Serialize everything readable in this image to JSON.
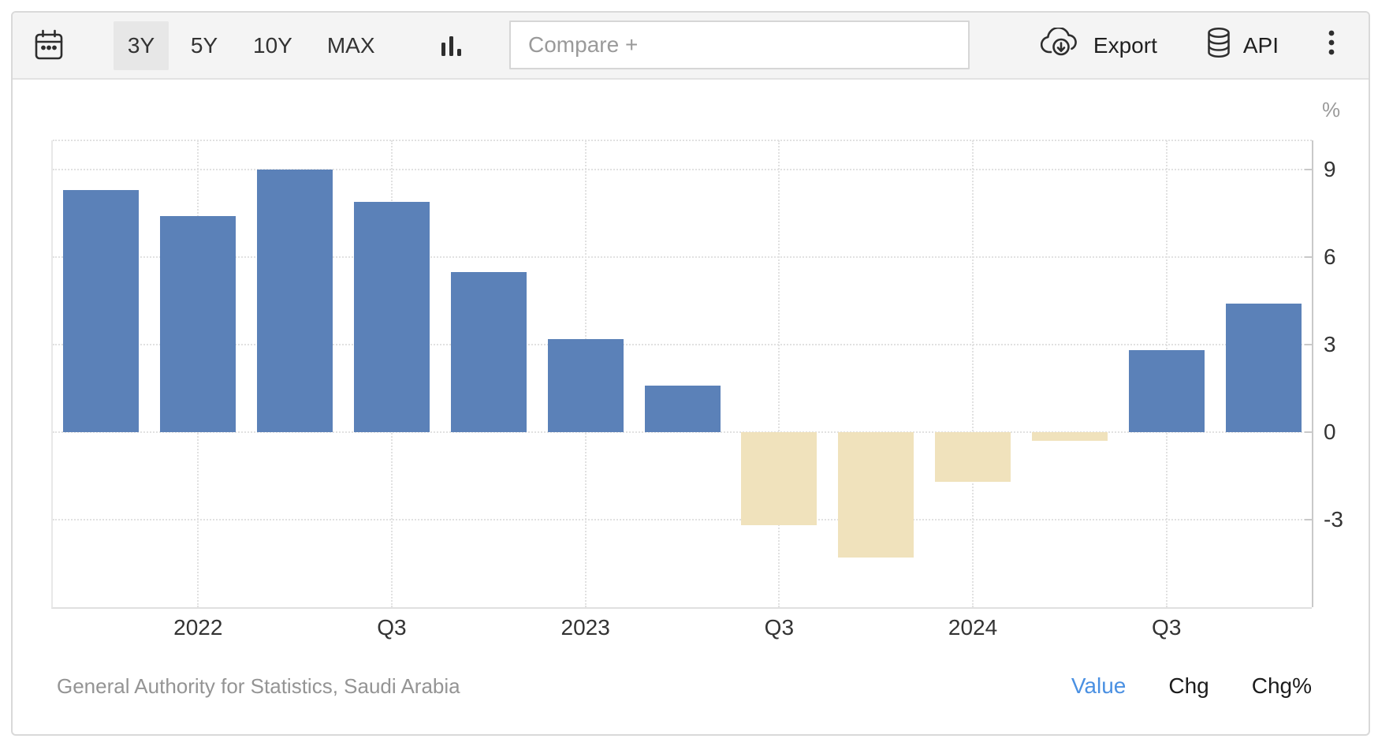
{
  "toolbar": {
    "calendar_icon": "calendar",
    "ranges": [
      {
        "label": "3Y",
        "selected": true
      },
      {
        "label": "5Y",
        "selected": false
      },
      {
        "label": "10Y",
        "selected": false
      },
      {
        "label": "MAX",
        "selected": false
      }
    ],
    "chart_type_icon": "bar-chart",
    "compare_placeholder": "Compare +",
    "export_label": "Export",
    "api_label": "API",
    "more_menu_icon": "kebab-menu"
  },
  "chart_data": {
    "type": "bar",
    "title": "",
    "unit_label": "%",
    "categories": [
      "2021-Q4",
      "2022-Q1",
      "2022-Q2",
      "2022-Q3",
      "2022-Q4",
      "2023-Q1",
      "2023-Q2",
      "2023-Q3",
      "2023-Q4",
      "2024-Q1",
      "2024-Q2",
      "2024-Q3",
      "2024-Q4"
    ],
    "values": [
      8.3,
      7.4,
      9.0,
      7.9,
      5.5,
      3.2,
      1.6,
      -3.2,
      -4.3,
      -1.7,
      -0.3,
      2.8,
      4.4
    ],
    "x_tick_labels": [
      {
        "bar_index": 1,
        "label": "2022"
      },
      {
        "bar_index": 3,
        "label": "Q3"
      },
      {
        "bar_index": 5,
        "label": "2023"
      },
      {
        "bar_index": 7,
        "label": "Q3"
      },
      {
        "bar_index": 9,
        "label": "2024"
      },
      {
        "bar_index": 11,
        "label": "Q3"
      }
    ],
    "y_ticks": [
      9,
      6,
      3,
      0,
      -3
    ],
    "ylim": [
      -6,
      10
    ],
    "grid": true,
    "legend": "none",
    "positive_color": "#5b81b8",
    "negative_color": "#f0e2bc"
  },
  "footer": {
    "source": "General Authority for Statistics, Saudi Arabia",
    "modes": [
      {
        "label": "Value",
        "active": true
      },
      {
        "label": "Chg",
        "active": false
      },
      {
        "label": "Chg%",
        "active": false
      }
    ]
  }
}
